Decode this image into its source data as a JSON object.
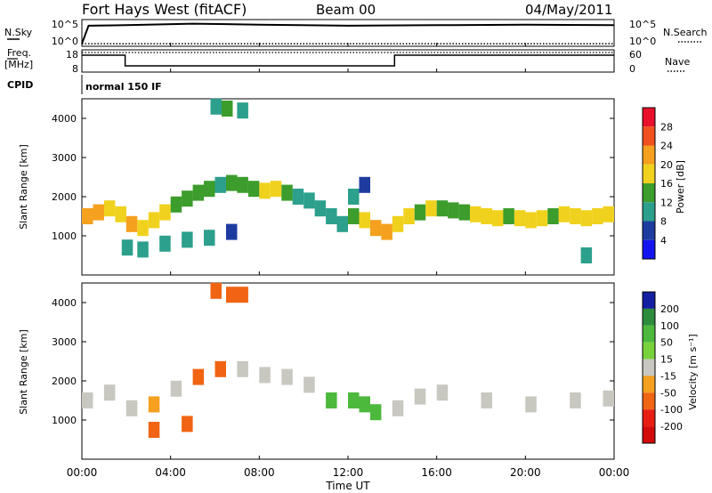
{
  "header": {
    "station": "Fort Hays West (fitACF)",
    "beam": "Beam 00",
    "date": "04/May/2011"
  },
  "noise_panel": {
    "left_label": "N.Sky",
    "right_label": "N.Search",
    "left_ticks": [
      "10^5",
      "10^0"
    ],
    "right_ticks": [
      "10^5",
      "10^0"
    ]
  },
  "freq_panel": {
    "left_label_1": "Freq.",
    "left_label_2": "[MHz]",
    "right_label": "Nave",
    "left_ticks": [
      "18",
      "8"
    ],
    "right_ticks": [
      "60",
      "0"
    ]
  },
  "cpid": {
    "label": "CPID",
    "value": "normal 150 IF"
  },
  "power_panel": {
    "ylabel": "Slant Range [km]",
    "yticks": [
      "4000",
      "3000",
      "2000",
      "1000"
    ],
    "colorbar_title": "Power [dB]",
    "colorbar_ticks": [
      "28",
      "24",
      "20",
      "16",
      "12",
      "8",
      "4"
    ],
    "colorbar_colors": [
      "#e8102a",
      "#f0501e",
      "#f5a01e",
      "#f0d21e",
      "#3c9c2c",
      "#2ca08c",
      "#1e3ca0",
      "#1414f0"
    ]
  },
  "velocity_panel": {
    "ylabel": "Slant Range [km]",
    "yticks": [
      "4000",
      "3000",
      "2000",
      "1000"
    ],
    "colorbar_title": "Velocity [m s⁻¹]",
    "colorbar_ticks": [
      "200",
      "100",
      "50",
      "15",
      "-15",
      "-50",
      "-100",
      "-200"
    ],
    "colorbar_colors": [
      "#141ea0",
      "#2c8c3c",
      "#4cb83c",
      "#78d23c",
      "#c8c8c0",
      "#f5a01e",
      "#f06414",
      "#e81e14",
      "#d20a0a"
    ]
  },
  "xaxis": {
    "label": "Time UT",
    "ticks": [
      "00:00",
      "04:00",
      "08:00",
      "12:00",
      "16:00",
      "20:00",
      "00:00"
    ]
  },
  "chart_data": [
    {
      "type": "line",
      "panel": "noise",
      "x_unit": "hours UT",
      "series": [
        {
          "label": "N.Sky",
          "x": [
            0,
            0.3,
            2,
            5,
            8,
            12,
            16,
            20,
            24
          ],
          "log10_value": [
            0.5,
            4.0,
            4.1,
            4.4,
            4.2,
            4.0,
            4.1,
            4.2,
            4.1
          ]
        },
        {
          "label": "N.Search",
          "x": [
            0,
            24
          ],
          "log10_value": [
            0.5,
            0.5
          ]
        }
      ]
    },
    {
      "type": "line",
      "panel": "frequency",
      "series": [
        {
          "label": "Freq. [MHz]",
          "x": [
            0,
            1.95,
            1.95,
            14.1,
            14.1,
            24
          ],
          "y": [
            16.5,
            16.5,
            10.5,
            10.5,
            16.5,
            16.5
          ]
        },
        {
          "label": "Nave",
          "x": [
            0,
            24
          ],
          "y": [
            60,
            60
          ]
        }
      ]
    },
    {
      "type": "heatmap",
      "panel": "power",
      "x_unit": "hours UT",
      "y_unit": "km",
      "xlim": [
        0,
        24
      ],
      "ylim": [
        0,
        4500
      ],
      "zlim": [
        0,
        30
      ],
      "cells": [
        {
          "x": 0.0,
          "y": 1500,
          "z": 22
        },
        {
          "x": 0.5,
          "y": 1600,
          "z": 20
        },
        {
          "x": 1.0,
          "y": 1700,
          "z": 18
        },
        {
          "x": 1.5,
          "y": 1550,
          "z": 16
        },
        {
          "x": 2.0,
          "y": 1300,
          "z": 20
        },
        {
          "x": 2.5,
          "y": 1200,
          "z": 18
        },
        {
          "x": 3.0,
          "y": 1400,
          "z": 16
        },
        {
          "x": 3.5,
          "y": 1600,
          "z": 18
        },
        {
          "x": 4.0,
          "y": 1800,
          "z": 14
        },
        {
          "x": 4.5,
          "y": 1950,
          "z": 12
        },
        {
          "x": 5.0,
          "y": 2100,
          "z": 14
        },
        {
          "x": 5.5,
          "y": 2200,
          "z": 12
        },
        {
          "x": 6.0,
          "y": 2300,
          "z": 10
        },
        {
          "x": 6.5,
          "y": 2350,
          "z": 12
        },
        {
          "x": 7.0,
          "y": 2300,
          "z": 14
        },
        {
          "x": 7.5,
          "y": 2200,
          "z": 12
        },
        {
          "x": 8.0,
          "y": 2150,
          "z": 16
        },
        {
          "x": 8.5,
          "y": 2200,
          "z": 18
        },
        {
          "x": 9.0,
          "y": 2100,
          "z": 14
        },
        {
          "x": 9.5,
          "y": 2000,
          "z": 10
        },
        {
          "x": 10.0,
          "y": 1900,
          "z": 8
        },
        {
          "x": 10.5,
          "y": 1700,
          "z": 8
        },
        {
          "x": 11.0,
          "y": 1500,
          "z": 10
        },
        {
          "x": 11.5,
          "y": 1300,
          "z": 8
        },
        {
          "x": 12.0,
          "y": 1500,
          "z": 12
        },
        {
          "x": 12.5,
          "y": 1400,
          "z": 16
        },
        {
          "x": 13.0,
          "y": 1200,
          "z": 20
        },
        {
          "x": 13.5,
          "y": 1100,
          "z": 22
        },
        {
          "x": 14.0,
          "y": 1300,
          "z": 18
        },
        {
          "x": 14.5,
          "y": 1500,
          "z": 16
        },
        {
          "x": 15.0,
          "y": 1600,
          "z": 14
        },
        {
          "x": 15.5,
          "y": 1700,
          "z": 16
        },
        {
          "x": 16.0,
          "y": 1700,
          "z": 14
        },
        {
          "x": 16.5,
          "y": 1650,
          "z": 12
        },
        {
          "x": 17.0,
          "y": 1600,
          "z": 14
        },
        {
          "x": 17.5,
          "y": 1550,
          "z": 16
        },
        {
          "x": 18.0,
          "y": 1500,
          "z": 18
        },
        {
          "x": 18.5,
          "y": 1450,
          "z": 16
        },
        {
          "x": 19.0,
          "y": 1500,
          "z": 14
        },
        {
          "x": 19.5,
          "y": 1450,
          "z": 16
        },
        {
          "x": 20.0,
          "y": 1400,
          "z": 18
        },
        {
          "x": 20.5,
          "y": 1450,
          "z": 16
        },
        {
          "x": 21.0,
          "y": 1500,
          "z": 14
        },
        {
          "x": 21.5,
          "y": 1550,
          "z": 16
        },
        {
          "x": 22.0,
          "y": 1500,
          "z": 18
        },
        {
          "x": 22.5,
          "y": 1450,
          "z": 16
        },
        {
          "x": 23.0,
          "y": 1500,
          "z": 18
        },
        {
          "x": 23.5,
          "y": 1550,
          "z": 16
        },
        {
          "x": 1.8,
          "y": 700,
          "z": 8
        },
        {
          "x": 2.5,
          "y": 650,
          "z": 10
        },
        {
          "x": 3.5,
          "y": 800,
          "z": 8
        },
        {
          "x": 4.5,
          "y": 900,
          "z": 10
        },
        {
          "x": 5.5,
          "y": 950,
          "z": 8
        },
        {
          "x": 6.5,
          "y": 1100,
          "z": 6
        },
        {
          "x": 5.8,
          "y": 4300,
          "z": 10
        },
        {
          "x": 6.3,
          "y": 4250,
          "z": 12
        },
        {
          "x": 7.0,
          "y": 4200,
          "z": 10
        },
        {
          "x": 12.0,
          "y": 2000,
          "z": 8
        },
        {
          "x": 12.5,
          "y": 2300,
          "z": 6
        },
        {
          "x": 22.5,
          "y": 500,
          "z": 8
        }
      ]
    },
    {
      "type": "heatmap",
      "panel": "velocity",
      "x_unit": "hours UT",
      "y_unit": "km",
      "xlim": [
        0,
        24
      ],
      "ylim": [
        0,
        4500
      ],
      "zlim": [
        -200,
        200
      ],
      "cells": [
        {
          "x": 0.0,
          "y": 1500,
          "z": 0
        },
        {
          "x": 1.0,
          "y": 1700,
          "z": -5
        },
        {
          "x": 2.0,
          "y": 1300,
          "z": 0
        },
        {
          "x": 3.0,
          "y": 1400,
          "z": -30
        },
        {
          "x": 4.0,
          "y": 1800,
          "z": 0
        },
        {
          "x": 5.0,
          "y": 2100,
          "z": -40
        },
        {
          "x": 6.0,
          "y": 2300,
          "z": -60
        },
        {
          "x": 7.0,
          "y": 2300,
          "z": 0
        },
        {
          "x": 8.0,
          "y": 2150,
          "z": -5
        },
        {
          "x": 9.0,
          "y": 2100,
          "z": 0
        },
        {
          "x": 10.0,
          "y": 1900,
          "z": 0
        },
        {
          "x": 11.0,
          "y": 1500,
          "z": 30
        },
        {
          "x": 12.0,
          "y": 1500,
          "z": 40
        },
        {
          "x": 12.5,
          "y": 1400,
          "z": 50
        },
        {
          "x": 13.0,
          "y": 1200,
          "z": 30
        },
        {
          "x": 14.0,
          "y": 1300,
          "z": 0
        },
        {
          "x": 15.0,
          "y": 1600,
          "z": -5
        },
        {
          "x": 16.0,
          "y": 1700,
          "z": 0
        },
        {
          "x": 18.0,
          "y": 1500,
          "z": 0
        },
        {
          "x": 20.0,
          "y": 1400,
          "z": 0
        },
        {
          "x": 22.0,
          "y": 1500,
          "z": 0
        },
        {
          "x": 23.5,
          "y": 1550,
          "z": 0
        },
        {
          "x": 3.0,
          "y": 750,
          "z": -40
        },
        {
          "x": 4.5,
          "y": 900,
          "z": -50
        },
        {
          "x": 5.8,
          "y": 4300,
          "z": -50
        },
        {
          "x": 6.5,
          "y": 4200,
          "z": -60
        },
        {
          "x": 7.0,
          "y": 4200,
          "z": -50
        }
      ]
    }
  ]
}
